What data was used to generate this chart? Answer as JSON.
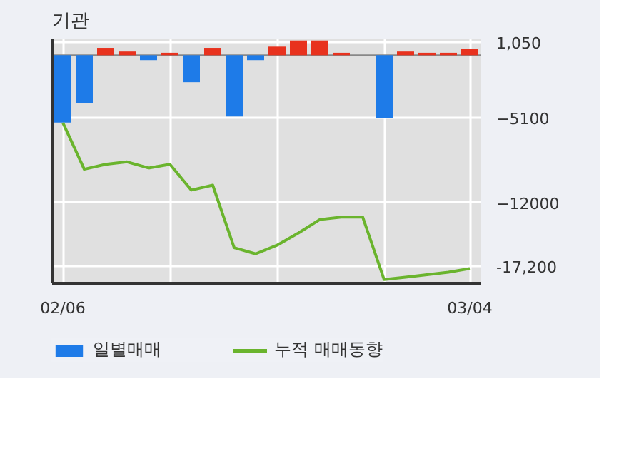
{
  "chart_data": {
    "type": "bar",
    "title": "기관",
    "categories": [
      "02/06",
      null,
      null,
      null,
      null,
      null,
      null,
      null,
      null,
      null,
      null,
      null,
      null,
      null,
      null,
      null,
      null,
      null,
      null,
      "03/04"
    ],
    "ylim": [
      -18600,
      1300
    ],
    "yticks": [
      {
        "value": 1050,
        "label": "1,050"
      },
      -5100,
      -12000,
      {
        "value": -17200,
        "label": "-17,200"
      }
    ],
    "grid": true,
    "legend": "bottom",
    "ref_lines": [
      {
        "axis": "y",
        "value": 0,
        "color": "#888888"
      }
    ],
    "series": [
      {
        "name": "일별매매",
        "colors": [
          "#1e7be8",
          "#1e7be8",
          "#e8321e",
          "#e8321e",
          "#1e7be8",
          "#e8321e",
          "#1e7be8",
          "#e8321e",
          "#1e7be8",
          "#1e7be8",
          "#e8321e",
          "#e8321e",
          "#e8321e",
          "#e8321e",
          "#e8321e",
          "#1e7be8",
          "#e8321e",
          "#e8321e",
          "#e8321e",
          "#e8321e"
        ],
        "values": [
          -5500,
          -3900,
          600,
          300,
          -400,
          200,
          -2200,
          600,
          -5000,
          -400,
          700,
          1200,
          1200,
          200,
          0,
          -5100,
          300,
          200,
          200,
          500
        ]
      },
      {
        "name": "누적 매매동향",
        "type": "line",
        "color": "#6ab42d",
        "values": [
          -5500,
          -9300,
          -8900,
          -8700,
          -9200,
          -8900,
          -11000,
          -10600,
          -15700,
          -16200,
          -15500,
          -14500,
          -13400,
          -13200,
          -13200,
          -18300,
          -18100,
          -17900,
          -17700,
          -17400
        ]
      }
    ]
  }
}
